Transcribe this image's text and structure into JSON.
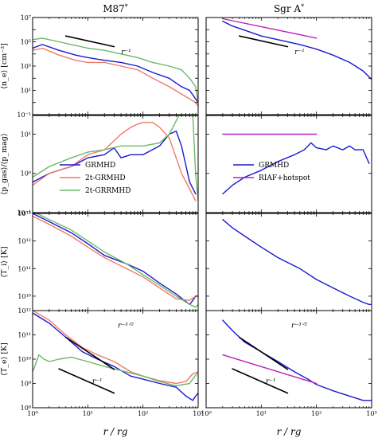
{
  "columns": [
    "M87$^*$",
    "Sgr A$^*$"
  ],
  "column_titles": [
    "M87",
    "Sgr A"
  ],
  "x_label": "r / rg",
  "y_labels": [
    "⟨n_e⟩ [cm⁻³]",
    "⟨p_gas⟩/⟨p_mag⟩",
    "⟨T_i⟩ [K]",
    "⟨T_e⟩ [K]"
  ],
  "colors": {
    "GRMHD": "#1a1acc",
    "2t-GRMHD": "#f07a6a",
    "2t-GRRMHD": "#6cb86c",
    "RIAF+hotspot": "#bb22bb",
    "powerlaw": "#000000"
  },
  "chart_data": [
    {
      "type": "line",
      "panel": "M87 ne",
      "xscale": "log",
      "yscale": "log",
      "xlim": [
        1,
        1000
      ],
      "ylim": [
        0.1,
        10000000
      ],
      "x_ticks": [
        "10^0",
        "10^1",
        "10^2",
        "10^3"
      ],
      "y_ticks": [
        "10^-1",
        "10^1",
        "10^3",
        "10^5",
        "10^7"
      ],
      "ylabel": "⟨n_e⟩ [cm⁻³]",
      "annotations": [
        {
          "text": "r^-1",
          "x": 40,
          "y": 10000
        }
      ],
      "series": [
        {
          "name": "GRMHD",
          "x": [
            1,
            1.5,
            3,
            6,
            10,
            20,
            40,
            80,
            150,
            300,
            500,
            700,
            900,
            1000
          ],
          "y": [
            30000,
            60000,
            20000,
            8000,
            5000,
            3000,
            2000,
            1000,
            300,
            100,
            20,
            10,
            2,
            1
          ]
        },
        {
          "name": "2t-GRMHD",
          "x": [
            1,
            1.5,
            3,
            6,
            10,
            20,
            40,
            80,
            150,
            300,
            500,
            700,
            900,
            1000
          ],
          "y": [
            20000,
            30000,
            8000,
            3000,
            2000,
            2000,
            1000,
            500,
            100,
            20,
            5,
            2,
            1,
            0.5
          ]
        },
        {
          "name": "2t-GRRMHD",
          "x": [
            1,
            1.5,
            3,
            6,
            10,
            20,
            40,
            80,
            150,
            300,
            500,
            700,
            900,
            1000
          ],
          "y": [
            150000,
            200000,
            100000,
            50000,
            30000,
            20000,
            10000,
            5000,
            2000,
            1000,
            500,
            100,
            20,
            1
          ]
        },
        {
          "name": "powerlaw",
          "x": [
            4,
            30
          ],
          "y": [
            300000,
            40000
          ]
        }
      ]
    },
    {
      "type": "line",
      "panel": "Sgr A ne",
      "xscale": "log",
      "yscale": "log",
      "xlim": [
        1,
        1000
      ],
      "ylim": [
        0.1,
        10000000
      ],
      "x_ticks": [
        "10^0",
        "10^1",
        "10^2",
        "10^3"
      ],
      "annotations": [
        {
          "text": "r^-1",
          "x": 40,
          "y": 10000
        }
      ],
      "series": [
        {
          "name": "GRMHD",
          "x": [
            2,
            3,
            5,
            10,
            20,
            50,
            100,
            200,
            400,
            700,
            1000
          ],
          "y": [
            5000000,
            2000000,
            900000,
            300000,
            150000,
            60000,
            25000,
            8000,
            2000,
            400,
            80
          ]
        },
        {
          "name": "RIAF+hotspot",
          "x": [
            2,
            100
          ],
          "y": [
            8000000,
            200000
          ]
        },
        {
          "name": "powerlaw",
          "x": [
            4,
            30
          ],
          "y": [
            300000,
            40000
          ]
        }
      ]
    },
    {
      "type": "line",
      "panel": "M87 beta",
      "xscale": "log",
      "yscale": "log",
      "xlim": [
        1,
        1000
      ],
      "ylim": [
        0.1,
        30
      ],
      "x_ticks": [
        "10^0",
        "10^1",
        "10^2",
        "10^3"
      ],
      "y_ticks": [
        "10^-1",
        "10^0",
        "10^1"
      ],
      "ylabel": "⟨p_gas⟩/⟨p_mag⟩",
      "legend": {
        "position": "lower left",
        "entries": [
          "GRMHD",
          "2t-GRMHD",
          "2t-GRRMHD"
        ]
      },
      "series": [
        {
          "name": "GRMHD",
          "x": [
            1,
            2,
            5,
            10,
            20,
            30,
            40,
            60,
            100,
            200,
            300,
            400,
            500,
            700,
            900
          ],
          "y": [
            0.6,
            1.0,
            1.5,
            2.5,
            3.0,
            4.5,
            2.5,
            3.0,
            3.0,
            5.0,
            10,
            12,
            5,
            0.6,
            0.3
          ]
        },
        {
          "name": "2t-GRMHD",
          "x": [
            1,
            2,
            5,
            10,
            20,
            40,
            60,
            80,
            100,
            150,
            200,
            300,
            500,
            700,
            900
          ],
          "y": [
            0.5,
            1.0,
            1.5,
            3.0,
            4.0,
            10,
            15,
            18,
            20,
            20,
            15,
            8,
            1,
            0.4,
            0.2
          ]
        },
        {
          "name": "2t-GRRMHD",
          "x": [
            1,
            2,
            5,
            10,
            20,
            40,
            100,
            200,
            300,
            500,
            700,
            800,
            900,
            1000
          ],
          "y": [
            0.8,
            1.5,
            2.5,
            3.5,
            4.0,
            5.0,
            5.0,
            6.0,
            10,
            40,
            40,
            30,
            1.0,
            0.2
          ]
        }
      ]
    },
    {
      "type": "line",
      "panel": "Sgr A beta",
      "xscale": "log",
      "yscale": "log",
      "xlim": [
        1,
        1000
      ],
      "ylim": [
        0.1,
        30
      ],
      "x_ticks": [
        "10^0",
        "10^1",
        "10^2",
        "10^3"
      ],
      "legend": {
        "position": "lower left",
        "entries": [
          "GRMHD",
          "RIAF+hotspot"
        ]
      },
      "series": [
        {
          "name": "GRMHD",
          "x": [
            2,
            3,
            5,
            10,
            20,
            40,
            60,
            80,
            100,
            150,
            200,
            300,
            400,
            500,
            700,
            900
          ],
          "y": [
            0.3,
            0.5,
            0.8,
            1.2,
            2.0,
            3.0,
            4.0,
            6.0,
            4.5,
            4.0,
            5.0,
            4.0,
            5.0,
            4.0,
            4.0,
            1.8
          ]
        },
        {
          "name": "RIAF+hotspot",
          "x": [
            2,
            100
          ],
          "y": [
            10,
            10
          ]
        }
      ]
    },
    {
      "type": "line",
      "panel": "M87 Ti",
      "xscale": "log",
      "yscale": "log",
      "xlim": [
        1,
        1000
      ],
      "ylim": [
        3000000000,
        10000000000000
      ],
      "x_ticks": [
        "10^0",
        "10^1",
        "10^2",
        "10^3"
      ],
      "y_ticks": [
        "10^10",
        "10^11",
        "10^12",
        "10^13"
      ],
      "ylabel": "⟨T_i⟩ [K]",
      "series": [
        {
          "name": "GRMHD",
          "x": [
            1,
            2,
            5,
            10,
            20,
            50,
            100,
            200,
            400,
            700,
            800,
            900,
            1000
          ],
          "y": [
            10000000000000,
            5000000000000,
            2000000000000,
            800000000000,
            300000000000,
            150000000000,
            80000000000,
            30000000000,
            12000000000,
            5000000000,
            7000000000,
            10000000000,
            10000000000
          ]
        },
        {
          "name": "2t-GRMHD",
          "x": [
            1,
            2,
            5,
            10,
            20,
            50,
            100,
            200,
            400,
            700,
            900,
            1000
          ],
          "y": [
            8000000000000,
            4000000000000,
            1500000000000,
            600000000000,
            250000000000,
            100000000000,
            50000000000,
            20000000000,
            8000000000,
            7000000000,
            10000000000,
            10000000000
          ]
        },
        {
          "name": "2t-GRRMHD",
          "x": [
            1,
            2,
            5,
            10,
            20,
            50,
            100,
            200,
            400,
            700,
            900,
            1000
          ],
          "y": [
            12000000000000,
            6000000000000,
            2500000000000,
            1000000000000,
            400000000000,
            150000000000,
            60000000000,
            25000000000,
            10000000000,
            5000000000,
            4000000000,
            5000000000
          ]
        }
      ]
    },
    {
      "type": "line",
      "panel": "Sgr A Ti",
      "xscale": "log",
      "yscale": "log",
      "xlim": [
        1,
        1000
      ],
      "ylim": [
        3000000000,
        10000000000000
      ],
      "x_ticks": [
        "10^0",
        "10^1",
        "10^2",
        "10^3"
      ],
      "series": [
        {
          "name": "GRMHD",
          "x": [
            2,
            3,
            5,
            10,
            20,
            50,
            100,
            200,
            400,
            700,
            900,
            1000
          ],
          "y": [
            6000000000000,
            3000000000000,
            1500000000000,
            600000000000,
            250000000000,
            100000000000,
            40000000000,
            20000000000,
            10000000000,
            6000000000,
            5000000000,
            5000000000
          ]
        }
      ]
    },
    {
      "type": "line",
      "panel": "M87 Te",
      "xscale": "log",
      "yscale": "log",
      "xlim": [
        1,
        1000
      ],
      "ylim": [
        100000000,
        1000000000000
      ],
      "x_ticks": [
        "10^0",
        "10^1",
        "10^2",
        "10^3"
      ],
      "y_ticks": [
        "10^8",
        "10^9",
        "10^10",
        "10^11",
        "10^12"
      ],
      "ylabel": "⟨T_e⟩ [K]",
      "annotations": [
        {
          "text": "r^-3/2",
          "x": 35,
          "y": 200000000000
        },
        {
          "text": "r^-1",
          "x": 12,
          "y": 1000000000
        }
      ],
      "series": [
        {
          "name": "GRMHD",
          "x": [
            1,
            2,
            4,
            8,
            15,
            30,
            60,
            100,
            200,
            400,
            600,
            800,
            900,
            1000
          ],
          "y": [
            800000000000,
            300000000000,
            80000000000,
            20000000000,
            10000000000,
            5000000000,
            2000000000,
            1500000000,
            1000000000,
            700000000,
            300000000,
            200000000,
            300000000,
            400000000
          ]
        },
        {
          "name": "2t-GRMHD",
          "x": [
            1,
            2,
            4,
            8,
            15,
            30,
            60,
            100,
            200,
            400,
            600,
            800,
            1000
          ],
          "y": [
            1000000000000,
            400000000000,
            100000000000,
            30000000000,
            15000000000,
            8000000000,
            3000000000,
            2000000000,
            1300000000,
            1000000000,
            1200000000,
            2500000000,
            3000000000
          ]
        },
        {
          "name": "2t-GRRMHD",
          "x": [
            1,
            1.3,
            1.6,
            2,
            3,
            5,
            10,
            20,
            50,
            100,
            200,
            400,
            700,
            1000
          ],
          "y": [
            3000000000,
            15000000000,
            10000000000,
            8000000000,
            10000000000,
            12000000000,
            8000000000,
            5000000000,
            3000000000,
            2000000000,
            1200000000,
            800000000,
            1000000000,
            3000000000
          ]
        },
        {
          "name": "powerlaw",
          "x": [
            4,
            30
          ],
          "y": [
            80000000000,
            3800000000
          ]
        },
        {
          "name": "powerlaw",
          "x": [
            3,
            30
          ],
          "y": [
            4000000000,
            400000000
          ]
        }
      ]
    },
    {
      "type": "line",
      "panel": "Sgr A Te",
      "xscale": "log",
      "yscale": "log",
      "xlim": [
        1,
        1000
      ],
      "ylim": [
        100000000,
        1000000000000
      ],
      "x_ticks": [
        "10^0",
        "10^1",
        "10^2",
        "10^3"
      ],
      "annotations": [
        {
          "text": "r^-3/2",
          "x": 35,
          "y": 200000000000
        },
        {
          "text": "r^-1",
          "x": 12,
          "y": 1000000000
        }
      ],
      "series": [
        {
          "name": "GRMHD",
          "x": [
            2,
            3,
            5,
            10,
            20,
            40,
            70,
            100,
            200,
            400,
            700,
            900,
            1000
          ],
          "y": [
            400000000000,
            150000000000,
            50000000000,
            20000000000,
            8000000000,
            3000000000,
            1500000000,
            900000000,
            500000000,
            300000000,
            200000000,
            200000000,
            200000000
          ]
        },
        {
          "name": "RIAF+hotspot",
          "x": [
            2,
            100
          ],
          "y": [
            15000000000,
            1000000000
          ]
        },
        {
          "name": "powerlaw",
          "x": [
            4,
            30
          ],
          "y": [
            80000000000,
            3800000000
          ]
        },
        {
          "name": "powerlaw",
          "x": [
            3,
            30
          ],
          "y": [
            4000000000,
            400000000
          ]
        }
      ]
    }
  ]
}
